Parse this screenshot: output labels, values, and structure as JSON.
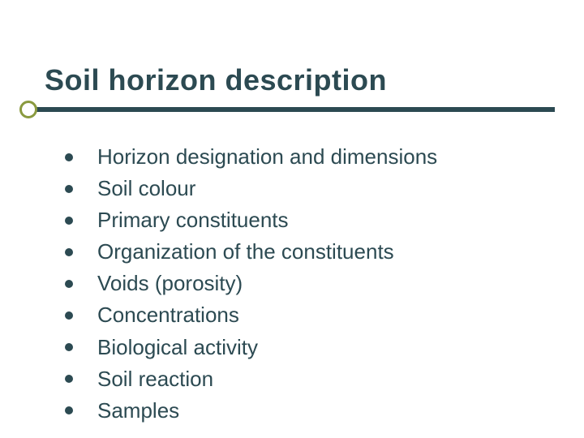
{
  "slide": {
    "title": "Soil horizon description",
    "title_fontsize": 36,
    "title_color": "#2c4a52",
    "accent_bar_color": "#2c4a52",
    "accent_circle_border_color": "#8a9a3f",
    "background_color": "#ffffff",
    "bullet_color": "#2c4a52",
    "item_text_color": "#2c4a52",
    "item_fontsize": 26,
    "items": [
      "Horizon designation and dimensions",
      "Soil colour",
      "Primary constituents",
      "Organization of the constituents",
      "Voids (porosity)",
      "Concentrations",
      "Biological activity",
      "Soil reaction",
      "Samples"
    ]
  }
}
